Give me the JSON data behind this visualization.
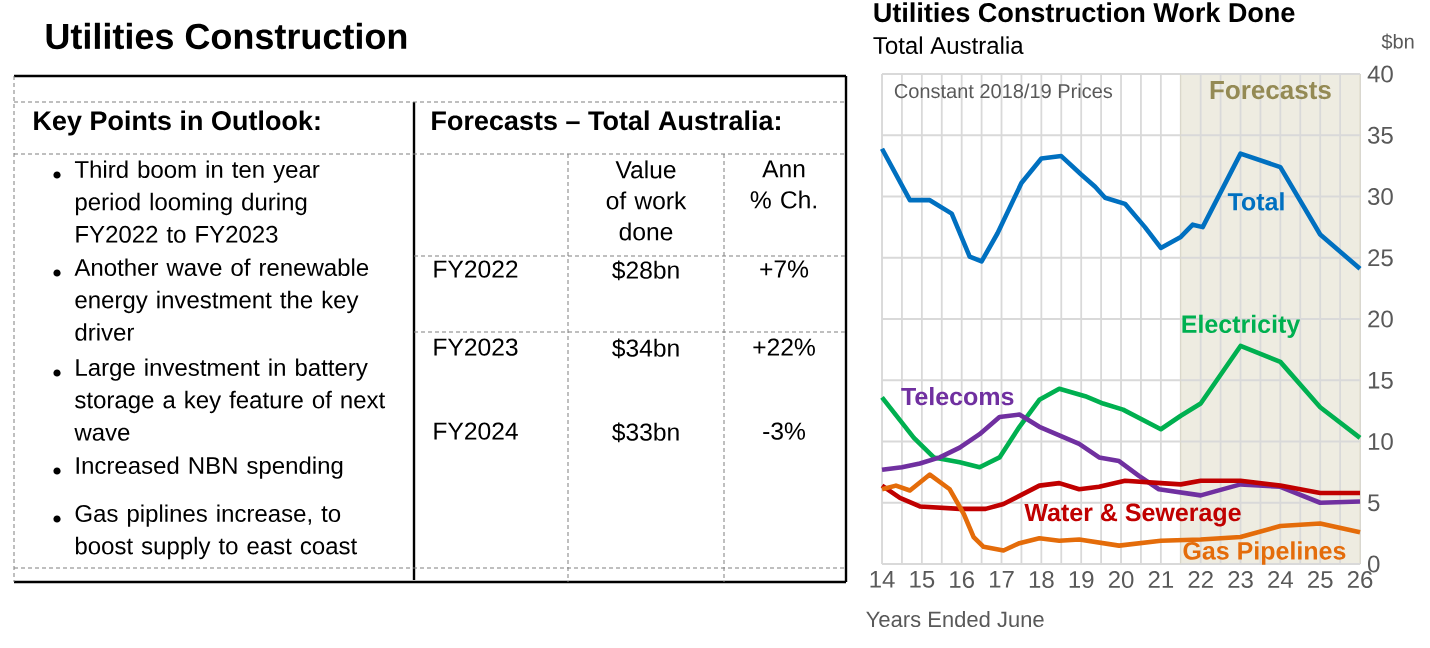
{
  "chart_data": [
    {
      "type": "other",
      "title": "Utilities Construction",
      "annotations": [
        "Key Points in Outlook:",
        "Forecasts – Total Australia:",
        "Third boom in ten year period looming during FY2022 to FY2023",
        "Another wave of renewable energy investment the key driver",
        "Large investment in battery storage a key feature of next wave",
        "Increased NBN spending",
        "Gas piplines increase, to boost supply to east coast",
        "Value of work done",
        "Ann % Ch.",
        "FY2022",
        "$28bn",
        "+7%",
        "FY2023",
        "$34bn",
        "+22%",
        "FY2024",
        "$33bn",
        "-3%"
      ]
    },
    {
      "type": "line",
      "title": "Utilities Construction Work Done",
      "subtitle": "Total Australia",
      "xlabel": "Years Ended June",
      "ylabel": "$bn",
      "annotations": [
        "Constant 2018/19 Prices"
      ],
      "xlim": [
        14,
        26
      ],
      "ylim": [
        0,
        40
      ],
      "xticks": [
        14,
        {
          "value": 14.5,
          "label": null
        },
        15,
        {
          "value": 15.5,
          "label": null
        },
        16,
        {
          "value": 16.5,
          "label": null
        },
        17,
        {
          "value": 17.5,
          "label": null
        },
        18,
        {
          "value": 18.5,
          "label": null
        },
        19,
        {
          "value": 19.5,
          "label": null
        },
        20,
        {
          "value": 20.5,
          "label": null
        },
        21,
        {
          "value": 21.5,
          "label": null
        },
        22,
        {
          "value": 22.5,
          "label": null
        },
        23,
        {
          "value": 23.5,
          "label": null
        },
        24,
        {
          "value": 24.5,
          "label": null
        },
        25,
        {
          "value": 25.5,
          "label": null
        },
        26
      ],
      "yticks": [
        0,
        5,
        10,
        15,
        20,
        25,
        30,
        35,
        40
      ],
      "grid": true,
      "bands": [
        {
          "axis": "x",
          "from": 21.5,
          "to": 26,
          "label": "Forecasts",
          "color": "#eeece1"
        }
      ],
      "series": [
        {
          "name": "Total",
          "color": "#0070c0",
          "x": [
            14.0,
            14.7,
            15.2,
            15.75,
            16.2,
            16.5,
            16.9,
            17.5,
            18.0,
            18.5,
            19.0,
            19.35,
            19.6,
            20.1,
            20.6,
            21.0,
            21.5,
            21.8,
            22.05,
            23.0,
            24.0,
            25.0,
            26.0
          ],
          "values": [
            33.9,
            29.7,
            29.7,
            28.6,
            25.1,
            24.7,
            27.0,
            31.1,
            33.1,
            33.3,
            31.8,
            30.8,
            29.9,
            29.4,
            27.5,
            25.8,
            26.7,
            27.7,
            27.5,
            33.5,
            32.4,
            26.9,
            24.1
          ]
        },
        {
          "name": "Electricity",
          "color": "#00b050",
          "x": [
            14.0,
            14.8,
            15.3,
            15.95,
            16.45,
            16.95,
            17.45,
            17.95,
            18.45,
            19.1,
            19.55,
            20.05,
            21.0,
            21.5,
            22.0,
            23.0,
            24.0,
            25.0,
            26.0
          ],
          "values": [
            13.6,
            10.3,
            8.7,
            8.3,
            7.9,
            8.7,
            11.2,
            13.4,
            14.3,
            13.7,
            13.1,
            12.6,
            11.0,
            12.1,
            13.1,
            17.8,
            16.5,
            12.8,
            10.3
          ]
        },
        {
          "name": "Telecoms",
          "color": "#7030a0",
          "x": [
            14.0,
            14.5,
            14.95,
            15.45,
            15.95,
            16.45,
            16.95,
            17.45,
            17.95,
            18.45,
            18.95,
            19.45,
            19.95,
            20.45,
            20.95,
            22.0,
            23.0,
            24.0,
            25.0,
            26.0
          ],
          "values": [
            7.7,
            7.9,
            8.2,
            8.7,
            9.5,
            10.6,
            12.0,
            12.2,
            11.2,
            10.5,
            9.8,
            8.7,
            8.4,
            7.2,
            6.1,
            5.6,
            6.5,
            6.3,
            5.0,
            5.1
          ]
        },
        {
          "name": "Water & Sewerage",
          "color": "#c00000",
          "x": [
            14.0,
            14.45,
            14.95,
            15.95,
            16.6,
            17.05,
            17.95,
            18.45,
            18.95,
            19.45,
            20.1,
            21.0,
            21.5,
            22.0,
            23.0,
            24.0,
            25.0,
            26.0
          ],
          "values": [
            6.4,
            5.4,
            4.7,
            4.5,
            4.5,
            4.9,
            6.4,
            6.6,
            6.1,
            6.3,
            6.8,
            6.6,
            6.5,
            6.8,
            6.8,
            6.4,
            5.8,
            5.8
          ]
        },
        {
          "name": "Gas Pipelines",
          "color": "#e46c0a",
          "x": [
            14.0,
            14.35,
            14.7,
            15.2,
            15.7,
            16.05,
            16.3,
            16.55,
            17.05,
            17.45,
            17.95,
            18.45,
            18.95,
            19.95,
            21.0,
            22.0,
            23.0,
            24.0,
            25.0,
            26.0
          ],
          "values": [
            6.1,
            6.4,
            6.0,
            7.3,
            6.1,
            4.1,
            2.2,
            1.4,
            1.1,
            1.7,
            2.1,
            1.9,
            2.0,
            1.5,
            1.9,
            2.0,
            2.2,
            3.1,
            3.3,
            2.6
          ]
        }
      ]
    }
  ]
}
